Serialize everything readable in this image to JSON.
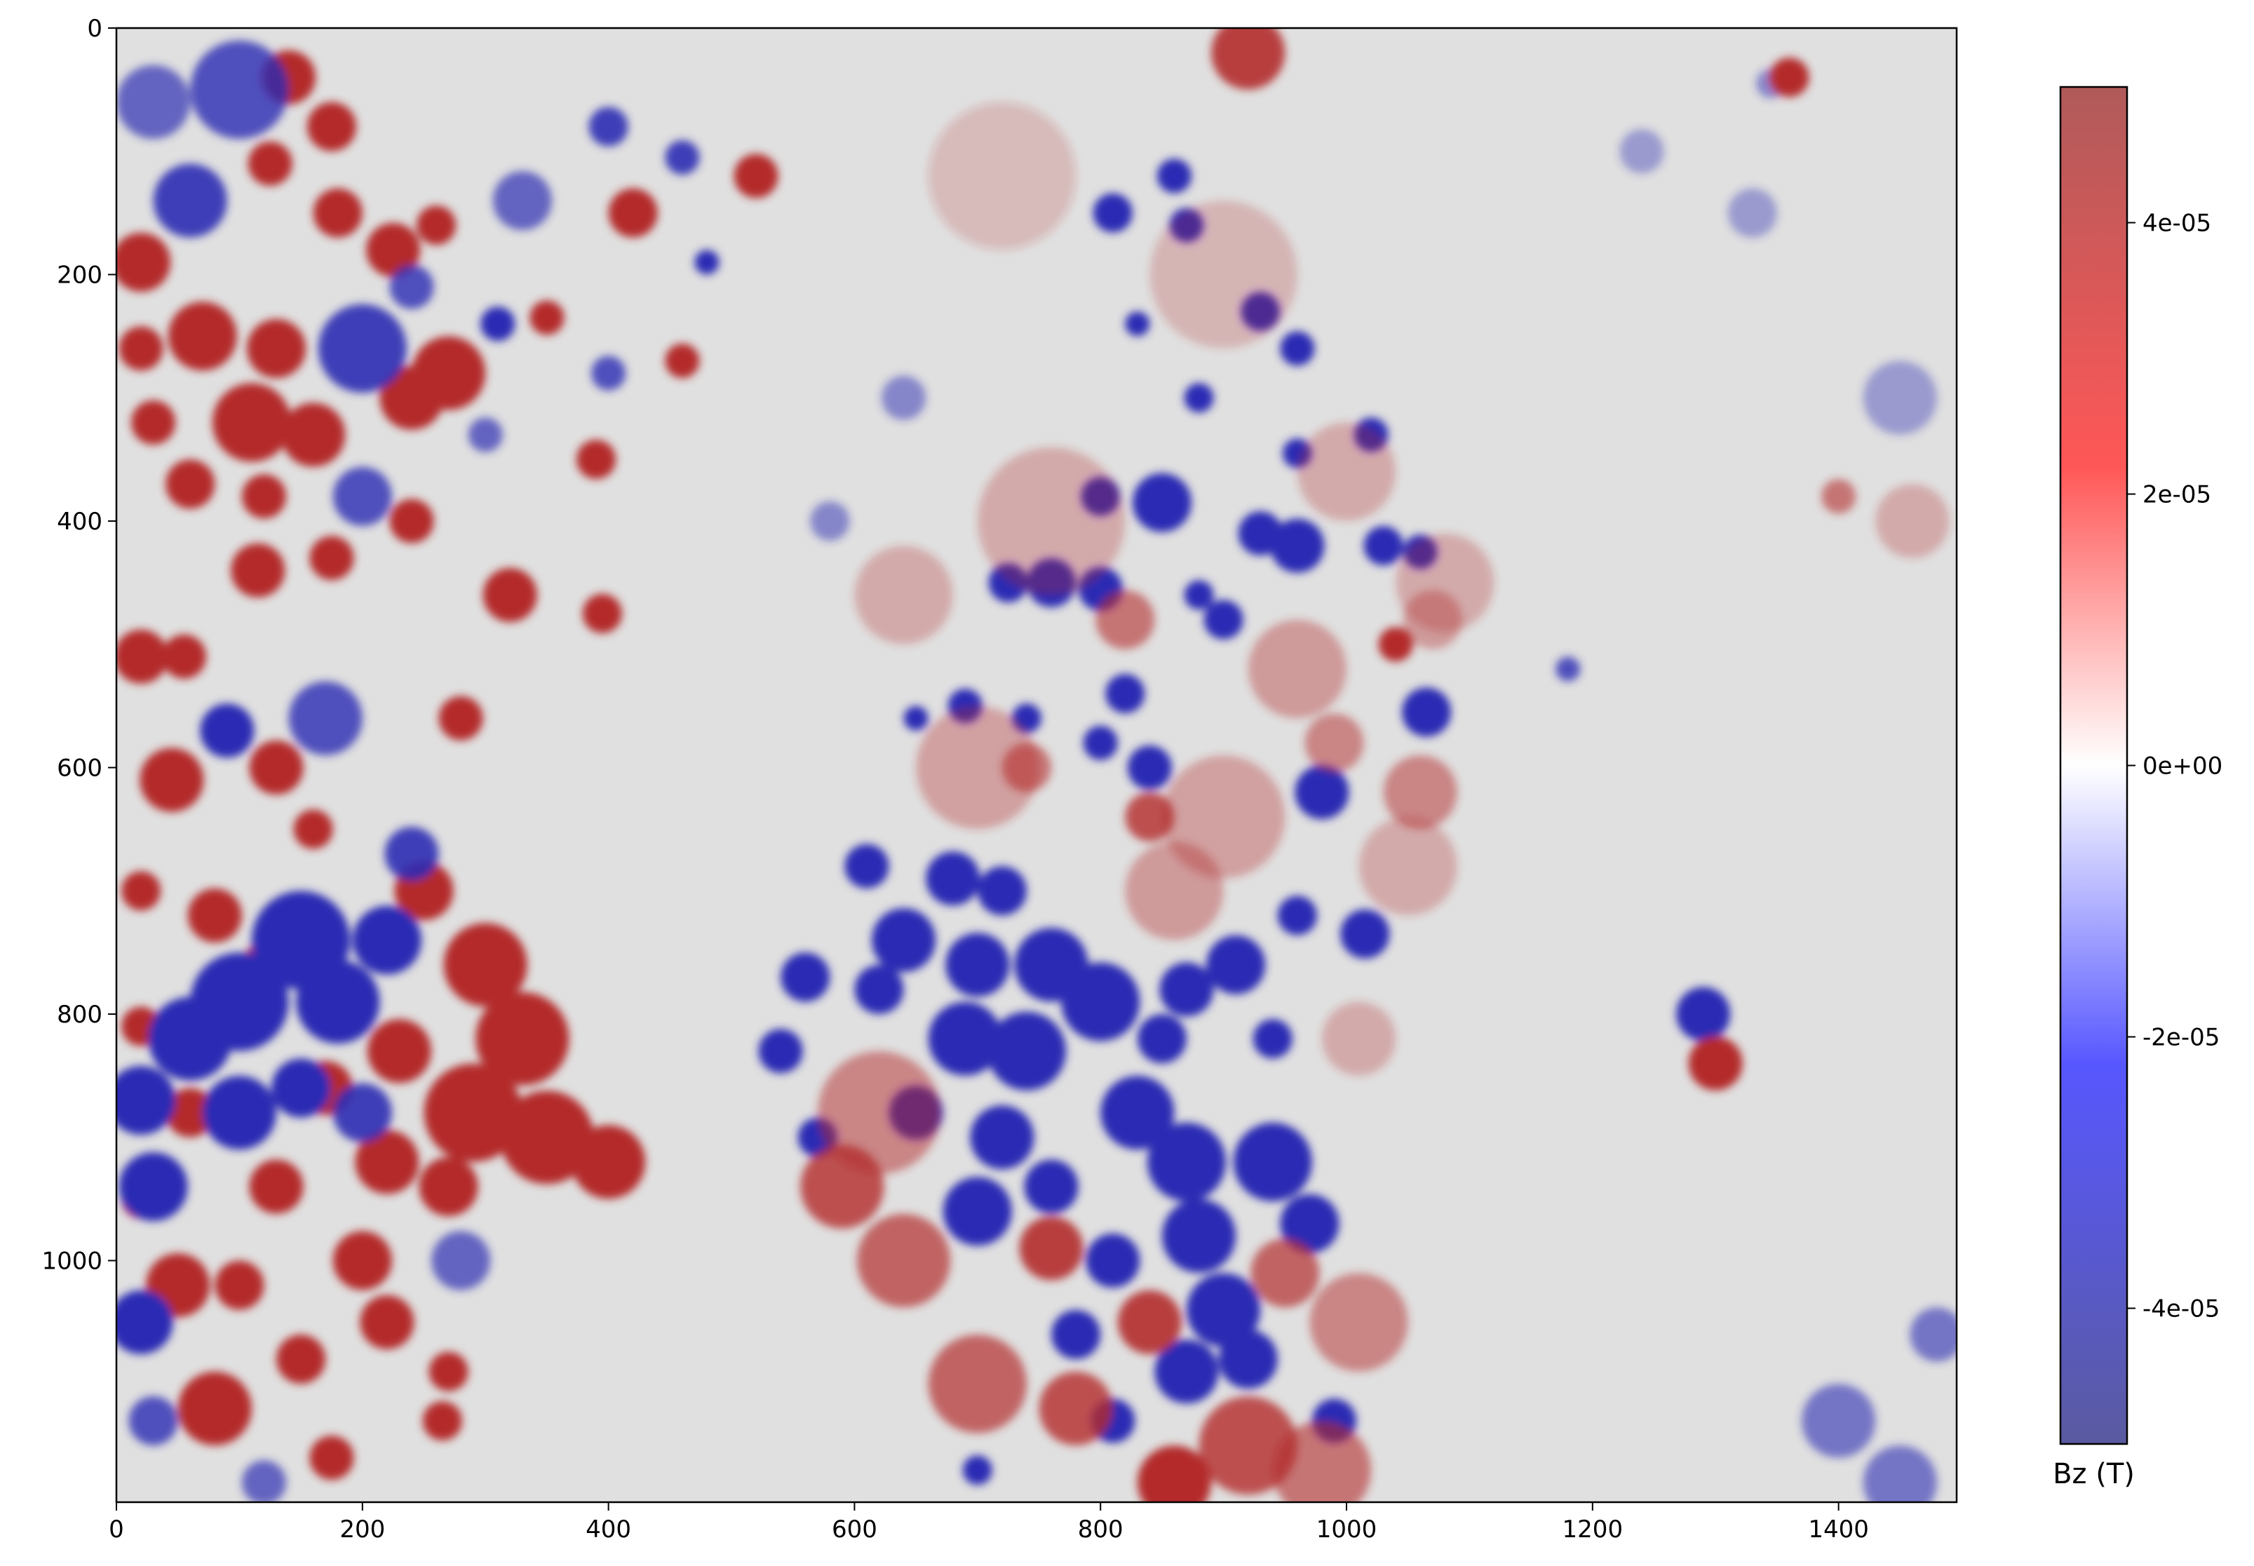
{
  "chart_data": {
    "type": "heatmap",
    "title": "",
    "xlabel": "",
    "ylabel": "",
    "xlim": [
      0,
      1496
    ],
    "ylim": [
      1196,
      0
    ],
    "x_ticks": [
      0,
      200,
      400,
      600,
      800,
      1000,
      1200,
      1400
    ],
    "x_tick_labels": [
      "0",
      "200",
      "400",
      "600",
      "800",
      "1000",
      "1200",
      "1400"
    ],
    "y_ticks": [
      0,
      200,
      400,
      600,
      800,
      1000
    ],
    "y_tick_labels": [
      "0",
      "200",
      "400",
      "600",
      "800",
      "1000"
    ],
    "colormap": "bwr",
    "colors": {
      "low": "#2c2cb4",
      "mid": "#e0e0e0",
      "high": "#b42c2c",
      "axes": "#000000"
    },
    "colorbar": {
      "label": "Bz (T)",
      "range": [
        -5e-05,
        5e-05
      ],
      "ticks": [
        4e-05,
        2e-05,
        0,
        -2e-05,
        -4e-05
      ],
      "tick_labels": [
        "4e-05",
        "2e-05",
        "0e+00",
        "-2e-05",
        "-4e-05"
      ]
    },
    "blobs": [
      {
        "x": 140,
        "y": 40,
        "r": 22,
        "v": 1
      },
      {
        "x": 175,
        "y": 80,
        "r": 20,
        "v": 1
      },
      {
        "x": 125,
        "y": 110,
        "r": 18,
        "v": 1
      },
      {
        "x": 20,
        "y": 190,
        "r": 24,
        "v": 1
      },
      {
        "x": 180,
        "y": 150,
        "r": 20,
        "v": 1
      },
      {
        "x": 225,
        "y": 180,
        "r": 22,
        "v": 1
      },
      {
        "x": 260,
        "y": 160,
        "r": 16,
        "v": 1
      },
      {
        "x": 70,
        "y": 250,
        "r": 28,
        "v": 1
      },
      {
        "x": 130,
        "y": 260,
        "r": 24,
        "v": 1
      },
      {
        "x": 20,
        "y": 260,
        "r": 18,
        "v": 1
      },
      {
        "x": 110,
        "y": 320,
        "r": 32,
        "v": 1
      },
      {
        "x": 160,
        "y": 330,
        "r": 26,
        "v": 1
      },
      {
        "x": 240,
        "y": 300,
        "r": 26,
        "v": 1
      },
      {
        "x": 270,
        "y": 280,
        "r": 30,
        "v": 1
      },
      {
        "x": 30,
        "y": 320,
        "r": 18,
        "v": 1
      },
      {
        "x": 60,
        "y": 370,
        "r": 20,
        "v": 1
      },
      {
        "x": 120,
        "y": 380,
        "r": 18,
        "v": 1
      },
      {
        "x": 240,
        "y": 400,
        "r": 18,
        "v": 1
      },
      {
        "x": 115,
        "y": 440,
        "r": 22,
        "v": 1
      },
      {
        "x": 175,
        "y": 430,
        "r": 18,
        "v": 1
      },
      {
        "x": 320,
        "y": 460,
        "r": 22,
        "v": 1
      },
      {
        "x": 395,
        "y": 475,
        "r": 16,
        "v": 1
      },
      {
        "x": 420,
        "y": 150,
        "r": 20,
        "v": 1
      },
      {
        "x": 390,
        "y": 350,
        "r": 16,
        "v": 1
      },
      {
        "x": 350,
        "y": 235,
        "r": 14,
        "v": 1
      },
      {
        "x": 460,
        "y": 270,
        "r": 14,
        "v": 1
      },
      {
        "x": 520,
        "y": 120,
        "r": 18,
        "v": 1
      },
      {
        "x": 20,
        "y": 510,
        "r": 22,
        "v": 1
      },
      {
        "x": 55,
        "y": 510,
        "r": 18,
        "v": 1
      },
      {
        "x": 280,
        "y": 560,
        "r": 18,
        "v": 1
      },
      {
        "x": 45,
        "y": 610,
        "r": 26,
        "v": 1
      },
      {
        "x": 130,
        "y": 600,
        "r": 22,
        "v": 1
      },
      {
        "x": 20,
        "y": 700,
        "r": 16,
        "v": 1
      },
      {
        "x": 80,
        "y": 720,
        "r": 22,
        "v": 1
      },
      {
        "x": 120,
        "y": 760,
        "r": 18,
        "v": 1
      },
      {
        "x": 160,
        "y": 650,
        "r": 16,
        "v": 1
      },
      {
        "x": 250,
        "y": 700,
        "r": 24,
        "v": 1
      },
      {
        "x": 300,
        "y": 760,
        "r": 34,
        "v": 1
      },
      {
        "x": 330,
        "y": 820,
        "r": 38,
        "v": 1
      },
      {
        "x": 290,
        "y": 880,
        "r": 40,
        "v": 1
      },
      {
        "x": 350,
        "y": 900,
        "r": 38,
        "v": 1
      },
      {
        "x": 400,
        "y": 920,
        "r": 30,
        "v": 1
      },
      {
        "x": 230,
        "y": 830,
        "r": 26,
        "v": 1
      },
      {
        "x": 170,
        "y": 860,
        "r": 22,
        "v": 1
      },
      {
        "x": 220,
        "y": 920,
        "r": 26,
        "v": 1
      },
      {
        "x": 270,
        "y": 940,
        "r": 24,
        "v": 1
      },
      {
        "x": 60,
        "y": 880,
        "r": 20,
        "v": 1
      },
      {
        "x": 20,
        "y": 810,
        "r": 16,
        "v": 1
      },
      {
        "x": 130,
        "y": 940,
        "r": 22,
        "v": 1
      },
      {
        "x": 50,
        "y": 1020,
        "r": 26,
        "v": 1
      },
      {
        "x": 100,
        "y": 1020,
        "r": 20,
        "v": 1
      },
      {
        "x": 200,
        "y": 1000,
        "r": 24,
        "v": 1
      },
      {
        "x": 220,
        "y": 1050,
        "r": 22,
        "v": 1
      },
      {
        "x": 80,
        "y": 1120,
        "r": 30,
        "v": 1
      },
      {
        "x": 150,
        "y": 1080,
        "r": 20,
        "v": 1
      },
      {
        "x": 270,
        "y": 1090,
        "r": 16,
        "v": 1
      },
      {
        "x": 265,
        "y": 1130,
        "r": 16,
        "v": 1
      },
      {
        "x": 175,
        "y": 1160,
        "r": 18,
        "v": 1
      },
      {
        "x": 20,
        "y": 950,
        "r": 16,
        "v": 1
      },
      {
        "x": 100,
        "y": 50,
        "r": 40,
        "v": -0.8
      },
      {
        "x": 60,
        "y": 140,
        "r": 30,
        "v": -0.9
      },
      {
        "x": 30,
        "y": 60,
        "r": 30,
        "v": -0.7
      },
      {
        "x": 200,
        "y": 260,
        "r": 36,
        "v": -0.9
      },
      {
        "x": 330,
        "y": 140,
        "r": 24,
        "v": -0.7
      },
      {
        "x": 400,
        "y": 80,
        "r": 16,
        "v": -0.9
      },
      {
        "x": 310,
        "y": 240,
        "r": 14,
        "v": -1
      },
      {
        "x": 240,
        "y": 210,
        "r": 18,
        "v": -0.8
      },
      {
        "x": 400,
        "y": 280,
        "r": 14,
        "v": -0.8
      },
      {
        "x": 460,
        "y": 105,
        "r": 14,
        "v": -0.9
      },
      {
        "x": 480,
        "y": 190,
        "r": 10,
        "v": -1
      },
      {
        "x": 200,
        "y": 380,
        "r": 24,
        "v": -0.8
      },
      {
        "x": 90,
        "y": 570,
        "r": 22,
        "v": -1
      },
      {
        "x": 170,
        "y": 560,
        "r": 30,
        "v": -0.8
      },
      {
        "x": 150,
        "y": 740,
        "r": 40,
        "v": -1
      },
      {
        "x": 100,
        "y": 790,
        "r": 40,
        "v": -1
      },
      {
        "x": 60,
        "y": 820,
        "r": 34,
        "v": -1
      },
      {
        "x": 180,
        "y": 790,
        "r": 34,
        "v": -1
      },
      {
        "x": 220,
        "y": 740,
        "r": 28,
        "v": -1
      },
      {
        "x": 20,
        "y": 870,
        "r": 28,
        "v": -1
      },
      {
        "x": 30,
        "y": 940,
        "r": 28,
        "v": -1
      },
      {
        "x": 100,
        "y": 880,
        "r": 30,
        "v": -1
      },
      {
        "x": 150,
        "y": 860,
        "r": 24,
        "v": -1
      },
      {
        "x": 200,
        "y": 880,
        "r": 24,
        "v": -0.9
      },
      {
        "x": 20,
        "y": 1050,
        "r": 26,
        "v": -1
      },
      {
        "x": 30,
        "y": 1130,
        "r": 20,
        "v": -0.8
      },
      {
        "x": 240,
        "y": 670,
        "r": 22,
        "v": -0.9
      },
      {
        "x": 280,
        "y": 1000,
        "r": 24,
        "v": -0.7
      },
      {
        "x": 120,
        "y": 1180,
        "r": 18,
        "v": -0.7
      },
      {
        "x": 300,
        "y": 330,
        "r": 14,
        "v": -0.7
      },
      {
        "x": 860,
        "y": 120,
        "r": 14,
        "v": -1
      },
      {
        "x": 810,
        "y": 150,
        "r": 16,
        "v": -1
      },
      {
        "x": 870,
        "y": 160,
        "r": 14,
        "v": -1
      },
      {
        "x": 830,
        "y": 240,
        "r": 10,
        "v": -1
      },
      {
        "x": 930,
        "y": 230,
        "r": 16,
        "v": -1
      },
      {
        "x": 960,
        "y": 260,
        "r": 14,
        "v": -1
      },
      {
        "x": 880,
        "y": 300,
        "r": 12,
        "v": -1
      },
      {
        "x": 1020,
        "y": 330,
        "r": 14,
        "v": -1
      },
      {
        "x": 960,
        "y": 345,
        "r": 12,
        "v": -1
      },
      {
        "x": 850,
        "y": 385,
        "r": 24,
        "v": -1
      },
      {
        "x": 800,
        "y": 380,
        "r": 16,
        "v": -1
      },
      {
        "x": 760,
        "y": 450,
        "r": 20,
        "v": -1
      },
      {
        "x": 800,
        "y": 455,
        "r": 18,
        "v": -1
      },
      {
        "x": 725,
        "y": 450,
        "r": 16,
        "v": -1
      },
      {
        "x": 960,
        "y": 420,
        "r": 22,
        "v": -1
      },
      {
        "x": 930,
        "y": 410,
        "r": 18,
        "v": -1
      },
      {
        "x": 1030,
        "y": 420,
        "r": 16,
        "v": -1
      },
      {
        "x": 1060,
        "y": 425,
        "r": 14,
        "v": -1
      },
      {
        "x": 900,
        "y": 480,
        "r": 16,
        "v": -1
      },
      {
        "x": 880,
        "y": 460,
        "r": 12,
        "v": -1
      },
      {
        "x": 820,
        "y": 540,
        "r": 16,
        "v": -1
      },
      {
        "x": 840,
        "y": 600,
        "r": 18,
        "v": -1
      },
      {
        "x": 800,
        "y": 580,
        "r": 14,
        "v": -1
      },
      {
        "x": 980,
        "y": 620,
        "r": 22,
        "v": -1
      },
      {
        "x": 1065,
        "y": 555,
        "r": 20,
        "v": -1
      },
      {
        "x": 690,
        "y": 550,
        "r": 14,
        "v": -1
      },
      {
        "x": 740,
        "y": 560,
        "r": 12,
        "v": -1
      },
      {
        "x": 650,
        "y": 560,
        "r": 10,
        "v": -1
      },
      {
        "x": 1290,
        "y": 800,
        "r": 22,
        "v": -1
      },
      {
        "x": 1345,
        "y": 45,
        "r": 12,
        "v": -0.5
      },
      {
        "x": 1330,
        "y": 150,
        "r": 20,
        "v": -0.4
      },
      {
        "x": 1240,
        "y": 100,
        "r": 18,
        "v": -0.4
      },
      {
        "x": 1180,
        "y": 520,
        "r": 10,
        "v": -0.8
      },
      {
        "x": 610,
        "y": 680,
        "r": 18,
        "v": -1
      },
      {
        "x": 680,
        "y": 690,
        "r": 22,
        "v": -1
      },
      {
        "x": 720,
        "y": 700,
        "r": 20,
        "v": -1
      },
      {
        "x": 640,
        "y": 740,
        "r": 26,
        "v": -1
      },
      {
        "x": 700,
        "y": 760,
        "r": 26,
        "v": -1
      },
      {
        "x": 760,
        "y": 760,
        "r": 30,
        "v": -1
      },
      {
        "x": 800,
        "y": 790,
        "r": 32,
        "v": -1
      },
      {
        "x": 740,
        "y": 830,
        "r": 32,
        "v": -1
      },
      {
        "x": 690,
        "y": 820,
        "r": 30,
        "v": -1
      },
      {
        "x": 620,
        "y": 780,
        "r": 20,
        "v": -1
      },
      {
        "x": 560,
        "y": 770,
        "r": 20,
        "v": -1
      },
      {
        "x": 540,
        "y": 830,
        "r": 18,
        "v": -1
      },
      {
        "x": 570,
        "y": 900,
        "r": 16,
        "v": -1
      },
      {
        "x": 650,
        "y": 880,
        "r": 22,
        "v": -1
      },
      {
        "x": 720,
        "y": 900,
        "r": 26,
        "v": -1
      },
      {
        "x": 700,
        "y": 960,
        "r": 28,
        "v": -1
      },
      {
        "x": 760,
        "y": 940,
        "r": 22,
        "v": -1
      },
      {
        "x": 830,
        "y": 880,
        "r": 30,
        "v": -1
      },
      {
        "x": 870,
        "y": 920,
        "r": 32,
        "v": -1
      },
      {
        "x": 940,
        "y": 920,
        "r": 32,
        "v": -1
      },
      {
        "x": 970,
        "y": 970,
        "r": 24,
        "v": -1
      },
      {
        "x": 880,
        "y": 980,
        "r": 30,
        "v": -1
      },
      {
        "x": 900,
        "y": 1040,
        "r": 30,
        "v": -1
      },
      {
        "x": 870,
        "y": 1090,
        "r": 26,
        "v": -1
      },
      {
        "x": 920,
        "y": 1080,
        "r": 24,
        "v": -1
      },
      {
        "x": 810,
        "y": 1000,
        "r": 22,
        "v": -1
      },
      {
        "x": 780,
        "y": 1060,
        "r": 20,
        "v": -1
      },
      {
        "x": 810,
        "y": 1130,
        "r": 18,
        "v": -1
      },
      {
        "x": 990,
        "y": 1130,
        "r": 18,
        "v": -1
      },
      {
        "x": 870,
        "y": 780,
        "r": 22,
        "v": -1
      },
      {
        "x": 910,
        "y": 760,
        "r": 24,
        "v": -1
      },
      {
        "x": 960,
        "y": 720,
        "r": 16,
        "v": -1
      },
      {
        "x": 1015,
        "y": 735,
        "r": 20,
        "v": -1
      },
      {
        "x": 940,
        "y": 820,
        "r": 16,
        "v": -1
      },
      {
        "x": 850,
        "y": 820,
        "r": 20,
        "v": -1
      },
      {
        "x": 700,
        "y": 1170,
        "r": 12,
        "v": -1
      },
      {
        "x": 1400,
        "y": 1130,
        "r": 30,
        "v": -0.6
      },
      {
        "x": 1450,
        "y": 1180,
        "r": 30,
        "v": -0.6
      },
      {
        "x": 1480,
        "y": 1060,
        "r": 22,
        "v": -0.6
      },
      {
        "x": 1450,
        "y": 300,
        "r": 30,
        "v": -0.4
      },
      {
        "x": 640,
        "y": 300,
        "r": 18,
        "v": -0.5
      },
      {
        "x": 580,
        "y": 400,
        "r": 16,
        "v": -0.5
      },
      {
        "x": 1360,
        "y": 40,
        "r": 16,
        "v": 1
      },
      {
        "x": 1300,
        "y": 840,
        "r": 22,
        "v": 1
      },
      {
        "x": 920,
        "y": 20,
        "r": 30,
        "v": 0.9
      },
      {
        "x": 860,
        "y": 1180,
        "r": 30,
        "v": 1
      },
      {
        "x": 920,
        "y": 1150,
        "r": 40,
        "v": 0.8
      },
      {
        "x": 980,
        "y": 1170,
        "r": 40,
        "v": 0.6
      },
      {
        "x": 700,
        "y": 1100,
        "r": 40,
        "v": 0.7
      },
      {
        "x": 640,
        "y": 1000,
        "r": 38,
        "v": 0.7
      },
      {
        "x": 590,
        "y": 940,
        "r": 34,
        "v": 0.8
      },
      {
        "x": 780,
        "y": 1120,
        "r": 30,
        "v": 0.8
      },
      {
        "x": 840,
        "y": 1050,
        "r": 26,
        "v": 0.9
      },
      {
        "x": 760,
        "y": 990,
        "r": 26,
        "v": 0.9
      },
      {
        "x": 950,
        "y": 1010,
        "r": 28,
        "v": 0.7
      },
      {
        "x": 1010,
        "y": 1050,
        "r": 40,
        "v": 0.5
      },
      {
        "x": 820,
        "y": 480,
        "r": 24,
        "v": 0.6
      },
      {
        "x": 840,
        "y": 640,
        "r": 20,
        "v": 0.8
      },
      {
        "x": 1040,
        "y": 500,
        "r": 14,
        "v": 1
      },
      {
        "x": 960,
        "y": 520,
        "r": 40,
        "v": 0.4
      },
      {
        "x": 1060,
        "y": 620,
        "r": 30,
        "v": 0.5
      },
      {
        "x": 1050,
        "y": 680,
        "r": 40,
        "v": 0.3
      },
      {
        "x": 900,
        "y": 640,
        "r": 50,
        "v": 0.35
      },
      {
        "x": 740,
        "y": 600,
        "r": 20,
        "v": 0.6
      },
      {
        "x": 990,
        "y": 580,
        "r": 24,
        "v": 0.5
      },
      {
        "x": 860,
        "y": 700,
        "r": 40,
        "v": 0.4
      },
      {
        "x": 760,
        "y": 400,
        "r": 60,
        "v": 0.3
      },
      {
        "x": 1000,
        "y": 360,
        "r": 40,
        "v": 0.3
      },
      {
        "x": 1080,
        "y": 450,
        "r": 40,
        "v": 0.3
      },
      {
        "x": 1010,
        "y": 820,
        "r": 30,
        "v": 0.3
      },
      {
        "x": 620,
        "y": 880,
        "r": 50,
        "v": 0.5
      },
      {
        "x": 700,
        "y": 600,
        "r": 50,
        "v": 0.35
      },
      {
        "x": 640,
        "y": 460,
        "r": 40,
        "v": 0.3
      },
      {
        "x": 900,
        "y": 200,
        "r": 60,
        "v": 0.25
      },
      {
        "x": 720,
        "y": 120,
        "r": 60,
        "v": 0.2
      },
      {
        "x": 1400,
        "y": 380,
        "r": 14,
        "v": 0.6
      },
      {
        "x": 1460,
        "y": 400,
        "r": 30,
        "v": 0.3
      },
      {
        "x": 1070,
        "y": 480,
        "r": 24,
        "v": 0.4
      }
    ]
  }
}
